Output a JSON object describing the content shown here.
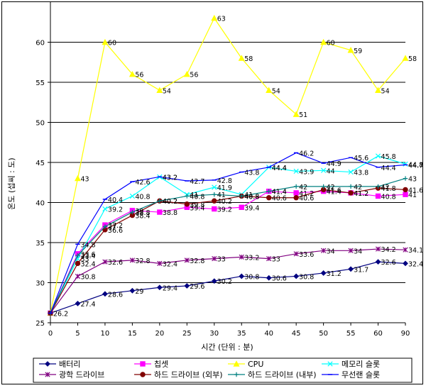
{
  "chart_data": {
    "type": "line",
    "title": "",
    "xlabel": "시간 (단위 : 분)",
    "ylabel": "온도 (섭씨 : 도)",
    "x": [
      0,
      5,
      10,
      15,
      20,
      25,
      30,
      35,
      40,
      45,
      50,
      55,
      60,
      90
    ],
    "x_ticks": [
      "0",
      "5",
      "10",
      "15",
      "20",
      "25",
      "30",
      "35",
      "40",
      "45",
      "50",
      "55",
      "60",
      "90"
    ],
    "ylim": [
      25,
      65
    ],
    "y_ticks": [
      25,
      30,
      35,
      40,
      45,
      50,
      55,
      60
    ],
    "grid": "horizontal",
    "legend_position": "bottom",
    "series": [
      {
        "name": "배터리",
        "color": "#000080",
        "marker": "diamond",
        "values": [
          26.2,
          27.4,
          28.6,
          29,
          29.4,
          29.6,
          30.2,
          30.8,
          30.6,
          30.8,
          31.2,
          31.7,
          32.6,
          32.4
        ],
        "labels": [
          "26.2",
          "27.4",
          "28.6",
          "29",
          "29.4",
          "29.6",
          "30.2",
          "30.8",
          "30.6",
          "30.8",
          "31.2",
          "31.7",
          "32.6",
          "32.4"
        ]
      },
      {
        "name": "칩셋",
        "color": "#ff00ff",
        "marker": "square",
        "values": [
          26.2,
          33.6,
          37.2,
          39,
          38.8,
          39.4,
          39.2,
          39.4,
          41.4,
          41.2,
          41.4,
          41.2,
          40.8,
          41
        ],
        "labels": [
          "",
          "33.6",
          "37.2",
          "39",
          "38.8",
          "39.4",
          "39.2",
          "39.4",
          "41.4",
          "41.2",
          "41.4",
          "41.2",
          "40.8",
          "41"
        ]
      },
      {
        "name": "CPU",
        "color": "#ffff00",
        "marker": "triangle",
        "values": [
          26.2,
          43,
          60,
          56,
          54,
          56,
          63,
          58,
          54,
          51,
          60,
          59,
          54,
          58
        ],
        "labels": [
          "",
          "43",
          "60",
          "56",
          "54",
          "56",
          "63",
          "58",
          "54",
          "51",
          "60",
          "59",
          "54",
          "58"
        ]
      },
      {
        "name": "메모리 슬롯",
        "color": "#00ffff",
        "marker": "x",
        "values": [
          26.2,
          33,
          39.2,
          40.8,
          43.2,
          41,
          41.9,
          41,
          44.4,
          43.9,
          44,
          43.8,
          45.8,
          44.8
        ],
        "labels": [
          "",
          "33",
          "39.2",
          "40.8",
          "43.2",
          "41",
          "41.9",
          "41",
          "44.4",
          "43.9",
          "44",
          "43.8",
          "45.8",
          "44.8"
        ]
      },
      {
        "name": "광학 드라이브",
        "color": "#800080",
        "marker": "star",
        "values": [
          26.2,
          30.8,
          32.6,
          32.8,
          32.4,
          32.8,
          33,
          33.2,
          33,
          33.6,
          34,
          34,
          34.2,
          34.1
        ],
        "labels": [
          "",
          "30.8",
          "32.6",
          "32.8",
          "32.4",
          "32.8",
          "33",
          "33.2",
          "33",
          "33.6",
          "34",
          "34",
          "34.2",
          "34.1"
        ]
      },
      {
        "name": "하드 드라이브 (외부)",
        "color": "#800000",
        "marker": "circle",
        "values": [
          26.2,
          32.4,
          36.6,
          38.4,
          40.2,
          39.8,
          40.2,
          40.8,
          40.6,
          40.6,
          41.6,
          41.2,
          41.8,
          41.6
        ],
        "labels": [
          "",
          "32.4",
          "36.6",
          "38.4",
          "40.2",
          "39.8",
          "40.2",
          "40.8",
          "40.6",
          "40.6",
          "41.6",
          "41.2",
          "41.8",
          "41.6"
        ]
      },
      {
        "name": "하드 드라이브 (내부)",
        "color": "#008080",
        "marker": "plus",
        "values": [
          26.2,
          33.4,
          37,
          38.8,
          40.2,
          40.8,
          41,
          40.8,
          41.4,
          42,
          42,
          42,
          42,
          43
        ],
        "labels": [
          "",
          "33.4",
          "37",
          "38.8",
          "40.2",
          "40.8",
          "41",
          "40.8",
          "41.4",
          "42",
          "42",
          "42",
          "42",
          "43"
        ]
      },
      {
        "name": "무선랜 슬롯",
        "color": "#0000ff",
        "marker": "dash",
        "values": [
          26.2,
          34.8,
          40.4,
          42.6,
          43.2,
          42.7,
          42.8,
          43.8,
          44.4,
          46.2,
          44.9,
          45.6,
          44.4,
          44.7
        ],
        "labels": [
          "",
          "34.8",
          "40.4",
          "42.6",
          "43.2",
          "42.7",
          "42.8",
          "43.8",
          "44.4",
          "46.2",
          "44.9",
          "45.6",
          "44.4",
          "44.7"
        ]
      }
    ]
  }
}
